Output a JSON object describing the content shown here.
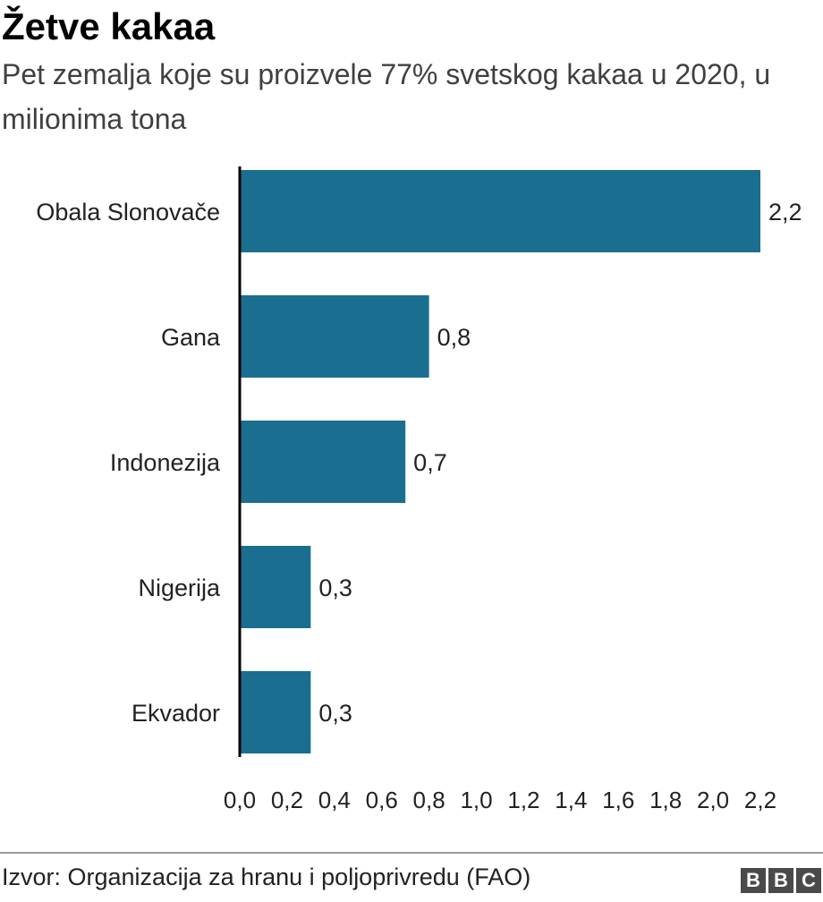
{
  "chart_data": {
    "type": "bar",
    "orientation": "horizontal",
    "title": "Žetve kakaa",
    "subtitle": "Pet zemalja koje su proizvele 77% svetskog kakaa u 2020, u milionima tona",
    "categories": [
      "Obala Slonovače",
      "Gana",
      "Indonezija",
      "Nigerija",
      "Ekvador"
    ],
    "values": [
      2.2,
      0.8,
      0.7,
      0.3,
      0.3
    ],
    "data_labels": [
      "2,2",
      "0,8",
      "0,7",
      "0,3",
      "0,3"
    ],
    "x_ticks": [
      0.0,
      0.2,
      0.4,
      0.6,
      0.8,
      1.0,
      1.2,
      1.4,
      1.6,
      1.8,
      2.0,
      2.2
    ],
    "x_tick_labels": [
      "0,0",
      "0,2",
      "0,4",
      "0,6",
      "0,8",
      "1,0",
      "1,2",
      "1,4",
      "1,6",
      "1,8",
      "2,0",
      "2,2"
    ],
    "xlim": [
      0,
      2.2
    ],
    "xlabel": "",
    "ylabel": "",
    "grid": false,
    "bar_color": "#1a6e8f"
  },
  "footer": {
    "source": "Izvor: Organizacija za hranu i poljoprivredu (FAO)",
    "logo_letters": [
      "B",
      "B",
      "C"
    ]
  }
}
